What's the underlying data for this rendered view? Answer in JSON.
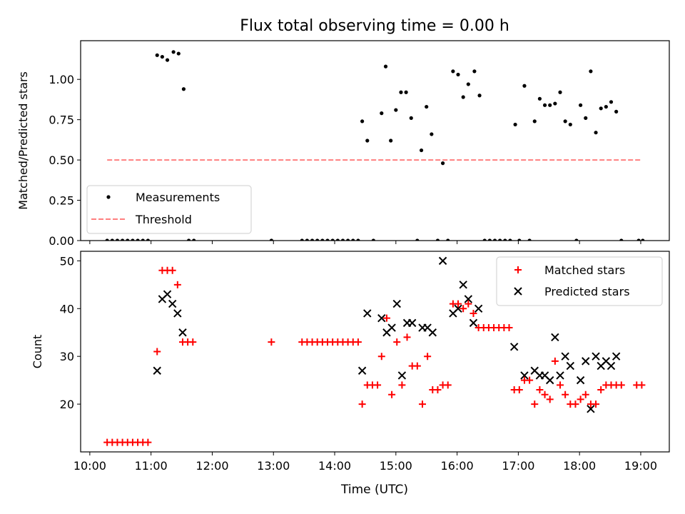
{
  "title": "Flux total observing time = 0.00 h",
  "xlabel": "Time (UTC)",
  "x_ticks": [
    "10:00",
    "11:00",
    "12:00",
    "13:00",
    "14:00",
    "15:00",
    "16:00",
    "17:00",
    "18:00",
    "19:00"
  ],
  "chart_data": [
    {
      "type": "scatter",
      "ylabel": "Matched/Predicted stars",
      "xlim": [
        "09:51",
        "19:28"
      ],
      "ylim": [
        0,
        1.24
      ],
      "y_ticks": [
        "0.00",
        "0.25",
        "0.50",
        "0.75",
        "1.00"
      ],
      "legend": {
        "placement": "lower-left",
        "entries": [
          "Measurements",
          "Threshold"
        ]
      },
      "threshold": {
        "name": "Threshold",
        "value": 0.5,
        "x_start": "10:17",
        "x_end": "19:00",
        "color": "#ff7f7f",
        "style": "dashed"
      },
      "series": [
        {
          "name": "Measurements",
          "color": "#000000",
          "marker": "dot",
          "points": [
            [
              "10:17",
              0
            ],
            [
              "10:22",
              0
            ],
            [
              "10:27",
              0
            ],
            [
              "10:32",
              0
            ],
            [
              "10:37",
              0
            ],
            [
              "10:42",
              0
            ],
            [
              "10:47",
              0
            ],
            [
              "10:52",
              0
            ],
            [
              "10:57",
              0
            ],
            [
              "11:06",
              1.15
            ],
            [
              "11:11",
              1.14
            ],
            [
              "11:16",
              1.12
            ],
            [
              "11:22",
              1.17
            ],
            [
              "11:27",
              1.16
            ],
            [
              "11:32",
              0.94
            ],
            [
              "11:37",
              0
            ],
            [
              "11:42",
              0
            ],
            [
              "12:58",
              0
            ],
            [
              "13:28",
              0
            ],
            [
              "13:33",
              0
            ],
            [
              "13:38",
              0
            ],
            [
              "13:43",
              0
            ],
            [
              "13:48",
              0
            ],
            [
              "13:53",
              0
            ],
            [
              "13:58",
              0
            ],
            [
              "14:03",
              0
            ],
            [
              "14:08",
              0
            ],
            [
              "14:13",
              0
            ],
            [
              "14:18",
              0
            ],
            [
              "14:23",
              0
            ],
            [
              "14:27",
              0.74
            ],
            [
              "14:32",
              0.62
            ],
            [
              "14:38",
              0
            ],
            [
              "14:46",
              0.79
            ],
            [
              "14:50",
              1.08
            ],
            [
              "14:55",
              0.62
            ],
            [
              "15:00",
              0.81
            ],
            [
              "15:05",
              0.92
            ],
            [
              "15:10",
              0.92
            ],
            [
              "15:15",
              0.76
            ],
            [
              "15:21",
              0
            ],
            [
              "15:25",
              0.56
            ],
            [
              "15:30",
              0.83
            ],
            [
              "15:35",
              0.66
            ],
            [
              "15:41",
              0
            ],
            [
              "15:46",
              0.48
            ],
            [
              "15:51",
              0
            ],
            [
              "15:56",
              1.05
            ],
            [
              "16:01",
              1.03
            ],
            [
              "16:06",
              0.89
            ],
            [
              "16:11",
              0.97
            ],
            [
              "16:17",
              1.05
            ],
            [
              "16:22",
              0.9
            ],
            [
              "16:27",
              0
            ],
            [
              "16:32",
              0
            ],
            [
              "16:37",
              0
            ],
            [
              "16:42",
              0
            ],
            [
              "16:47",
              0
            ],
            [
              "16:52",
              0
            ],
            [
              "16:57",
              0.72
            ],
            [
              "17:01",
              0
            ],
            [
              "17:06",
              0.96
            ],
            [
              "17:11",
              0
            ],
            [
              "17:16",
              0.74
            ],
            [
              "17:21",
              0.88
            ],
            [
              "17:26",
              0.84
            ],
            [
              "17:31",
              0.84
            ],
            [
              "17:36",
              0.85
            ],
            [
              "17:41",
              0.92
            ],
            [
              "17:46",
              0.74
            ],
            [
              "17:51",
              0.72
            ],
            [
              "17:57",
              0
            ],
            [
              "18:01",
              0.84
            ],
            [
              "18:06",
              0.76
            ],
            [
              "18:11",
              1.05
            ],
            [
              "18:16",
              0.67
            ],
            [
              "18:21",
              0.82
            ],
            [
              "18:26",
              0.83
            ],
            [
              "18:31",
              0.86
            ],
            [
              "18:36",
              0.8
            ],
            [
              "18:41",
              0
            ],
            [
              "18:58",
              0
            ],
            [
              "19:02",
              0
            ]
          ]
        }
      ]
    },
    {
      "type": "scatter",
      "ylabel": "Count",
      "xlim": [
        "09:51",
        "19:28"
      ],
      "ylim": [
        10,
        52
      ],
      "y_ticks": [
        "20",
        "30",
        "40",
        "50"
      ],
      "legend": {
        "placement": "top-right",
        "entries": [
          "Matched stars",
          "Predicted stars"
        ]
      },
      "series": [
        {
          "name": "Matched stars",
          "color": "#ff0000",
          "marker": "plus",
          "points": [
            [
              "10:17",
              12
            ],
            [
              "10:22",
              12
            ],
            [
              "10:27",
              12
            ],
            [
              "10:32",
              12
            ],
            [
              "10:37",
              12
            ],
            [
              "10:42",
              12
            ],
            [
              "10:47",
              12
            ],
            [
              "10:52",
              12
            ],
            [
              "10:57",
              12
            ],
            [
              "11:06",
              31
            ],
            [
              "11:11",
              48
            ],
            [
              "11:16",
              48
            ],
            [
              "11:21",
              48
            ],
            [
              "11:26",
              45
            ],
            [
              "11:31",
              33
            ],
            [
              "11:36",
              33
            ],
            [
              "11:41",
              33
            ],
            [
              "12:58",
              33
            ],
            [
              "13:28",
              33
            ],
            [
              "13:33",
              33
            ],
            [
              "13:38",
              33
            ],
            [
              "13:43",
              33
            ],
            [
              "13:48",
              33
            ],
            [
              "13:53",
              33
            ],
            [
              "13:58",
              33
            ],
            [
              "14:03",
              33
            ],
            [
              "14:08",
              33
            ],
            [
              "14:13",
              33
            ],
            [
              "14:18",
              33
            ],
            [
              "14:23",
              33
            ],
            [
              "14:27",
              20
            ],
            [
              "14:32",
              24
            ],
            [
              "14:37",
              24
            ],
            [
              "14:42",
              24
            ],
            [
              "14:46",
              30
            ],
            [
              "14:51",
              38
            ],
            [
              "14:56",
              22
            ],
            [
              "15:01",
              33
            ],
            [
              "15:06",
              24
            ],
            [
              "15:11",
              34
            ],
            [
              "15:16",
              28
            ],
            [
              "15:21",
              28
            ],
            [
              "15:26",
              20
            ],
            [
              "15:31",
              30
            ],
            [
              "15:36",
              23
            ],
            [
              "15:41",
              23
            ],
            [
              "15:46",
              24
            ],
            [
              "15:51",
              24
            ],
            [
              "15:56",
              41
            ],
            [
              "16:01",
              41
            ],
            [
              "16:06",
              40
            ],
            [
              "16:11",
              41
            ],
            [
              "16:16",
              39
            ],
            [
              "16:21",
              36
            ],
            [
              "16:26",
              36
            ],
            [
              "16:31",
              36
            ],
            [
              "16:36",
              36
            ],
            [
              "16:41",
              36
            ],
            [
              "16:46",
              36
            ],
            [
              "16:51",
              36
            ],
            [
              "16:56",
              23
            ],
            [
              "17:01",
              23
            ],
            [
              "17:06",
              25
            ],
            [
              "17:11",
              25
            ],
            [
              "17:16",
              20
            ],
            [
              "17:21",
              23
            ],
            [
              "17:26",
              22
            ],
            [
              "17:31",
              21
            ],
            [
              "17:36",
              29
            ],
            [
              "17:41",
              24
            ],
            [
              "17:46",
              22
            ],
            [
              "17:51",
              20
            ],
            [
              "17:56",
              20
            ],
            [
              "18:01",
              21
            ],
            [
              "18:06",
              22
            ],
            [
              "18:11",
              20
            ],
            [
              "18:16",
              20
            ],
            [
              "18:21",
              23
            ],
            [
              "18:26",
              24
            ],
            [
              "18:31",
              24
            ],
            [
              "18:36",
              24
            ],
            [
              "18:41",
              24
            ],
            [
              "18:56",
              24
            ],
            [
              "19:01",
              24
            ]
          ]
        },
        {
          "name": "Predicted stars",
          "color": "#000000",
          "marker": "x",
          "points": [
            [
              "11:06",
              27
            ],
            [
              "11:11",
              42
            ],
            [
              "11:16",
              43
            ],
            [
              "11:21",
              41
            ],
            [
              "11:26",
              39
            ],
            [
              "11:31",
              35
            ],
            [
              "14:27",
              27
            ],
            [
              "14:32",
              39
            ],
            [
              "14:46",
              38
            ],
            [
              "14:51",
              35
            ],
            [
              "14:56",
              36
            ],
            [
              "15:01",
              41
            ],
            [
              "15:06",
              26
            ],
            [
              "15:11",
              37
            ],
            [
              "15:16",
              37
            ],
            [
              "15:26",
              36
            ],
            [
              "15:31",
              36
            ],
            [
              "15:36",
              35
            ],
            [
              "15:46",
              50
            ],
            [
              "15:56",
              39
            ],
            [
              "16:01",
              40
            ],
            [
              "16:06",
              45
            ],
            [
              "16:11",
              42
            ],
            [
              "16:16",
              37
            ],
            [
              "16:21",
              40
            ],
            [
              "16:56",
              32
            ],
            [
              "17:06",
              26
            ],
            [
              "17:16",
              27
            ],
            [
              "17:21",
              26
            ],
            [
              "17:26",
              26
            ],
            [
              "17:31",
              25
            ],
            [
              "17:36",
              34
            ],
            [
              "17:41",
              26
            ],
            [
              "17:46",
              30
            ],
            [
              "17:51",
              28
            ],
            [
              "18:01",
              25
            ],
            [
              "18:06",
              29
            ],
            [
              "18:11",
              19
            ],
            [
              "18:16",
              30
            ],
            [
              "18:21",
              28
            ],
            [
              "18:26",
              29
            ],
            [
              "18:31",
              28
            ],
            [
              "18:36",
              30
            ]
          ]
        }
      ]
    }
  ]
}
